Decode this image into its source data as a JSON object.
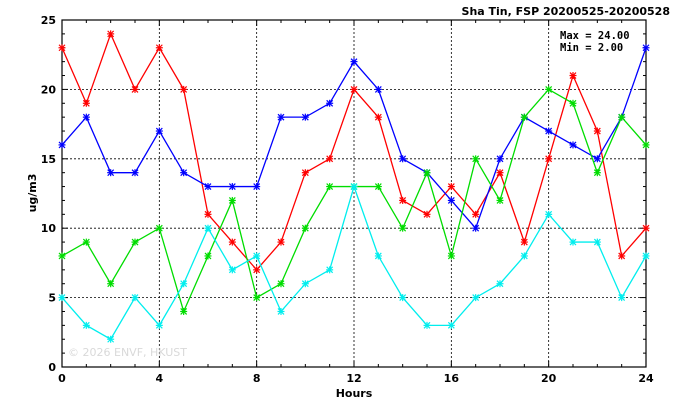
{
  "header": {
    "title": "Sha Tin, FSP 20200525-20200528",
    "max_label": "Max = 24.00",
    "min_label": "Min =  2.00"
  },
  "watermark": "© 2026  ENVF, HKUST",
  "chart_data": {
    "type": "line",
    "title": "Sha Tin, FSP 20200525-20200528",
    "xlabel": "Hours",
    "ylabel": "ug/m3",
    "xlim": [
      0,
      24
    ],
    "ylim": [
      0,
      25
    ],
    "x_ticks": [
      0,
      4,
      8,
      12,
      16,
      20,
      24
    ],
    "y_ticks": [
      0,
      5,
      10,
      15,
      20,
      25
    ],
    "grid": true,
    "x": [
      0,
      1,
      2,
      3,
      4,
      5,
      6,
      7,
      8,
      9,
      10,
      11,
      12,
      13,
      14,
      15,
      16,
      17,
      18,
      19,
      20,
      21,
      22,
      23,
      24
    ],
    "series": [
      {
        "color": "#ff0000",
        "values": [
          23,
          19,
          24,
          20,
          23,
          20,
          11,
          9,
          7,
          9,
          14,
          15,
          20,
          18,
          12,
          11,
          13,
          11,
          14,
          9,
          15,
          21,
          17,
          8,
          10
        ]
      },
      {
        "color": "#0000ff",
        "values": [
          16,
          18,
          14,
          14,
          17,
          14,
          13,
          13,
          13,
          18,
          18,
          19,
          22,
          20,
          15,
          14,
          12,
          10,
          15,
          18,
          17,
          16,
          15,
          18,
          23
        ]
      },
      {
        "color": "#00dd00",
        "values": [
          8,
          9,
          6,
          9,
          10,
          4,
          8,
          12,
          5,
          6,
          10,
          13,
          13,
          13,
          10,
          14,
          8,
          15,
          12,
          18,
          20,
          19,
          14,
          18,
          16
        ]
      },
      {
        "color": "#00eeee",
        "values": [
          5,
          3,
          2,
          5,
          3,
          6,
          10,
          7,
          8,
          4,
          6,
          7,
          13,
          8,
          5,
          3,
          3,
          5,
          6,
          8,
          11,
          9,
          9,
          5,
          8
        ]
      }
    ]
  }
}
